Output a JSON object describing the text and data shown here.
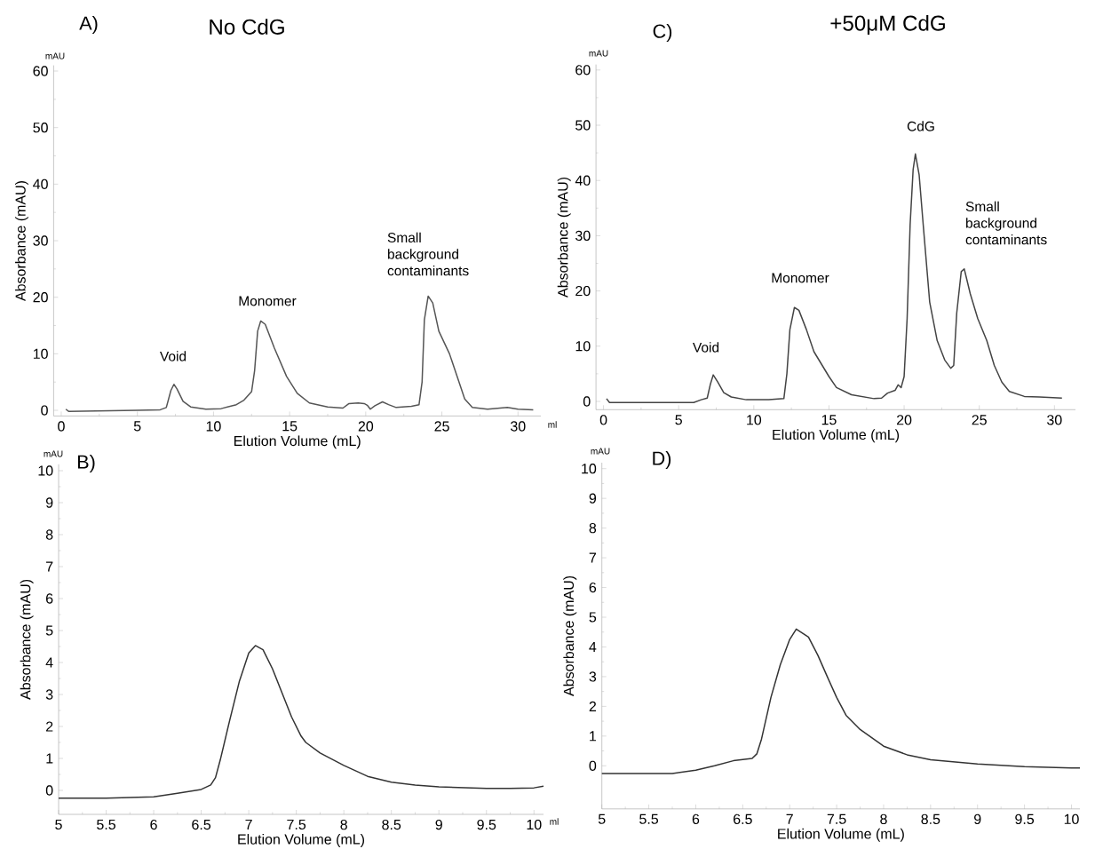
{
  "chart_data": [
    {
      "type": "line",
      "title": "No CdG",
      "xlabel": "Elution Volume (mL)",
      "ylabel": "Absorbance (mAU)",
      "xlim": [
        -0.5,
        31.5
      ],
      "ylim": [
        -1,
        61
      ],
      "xticks": [
        0,
        5,
        10,
        15,
        20,
        25,
        30
      ],
      "yticks": [
        0,
        10,
        20,
        30,
        40,
        50,
        60
      ],
      "series": [
        {
          "color": "#555555",
          "x": [
            0.3,
            0.5,
            5,
            6.5,
            6.9,
            7.2,
            7.4,
            7.6,
            8,
            8.5,
            9.5,
            10.5,
            11.5,
            12,
            12.5,
            12.7,
            12.9,
            13.1,
            13.4,
            14,
            14.8,
            15.5,
            16.3,
            17.5,
            18.5,
            18.9,
            19.5,
            19.9,
            20.1,
            20.3,
            20.6,
            21.1,
            21.5,
            22,
            23,
            23.5,
            23.7,
            23.85,
            24.1,
            24.4,
            24.8,
            25.5,
            26,
            26.5,
            27,
            28,
            29.3,
            30,
            31
          ],
          "values": [
            0.2,
            -0.2,
            0,
            0.1,
            0.5,
            3.5,
            4.6,
            3.8,
            1.6,
            0.6,
            0.2,
            0.3,
            1.0,
            1.8,
            3.3,
            7,
            14,
            15.8,
            15.2,
            11,
            6,
            3,
            1.3,
            0.6,
            0.4,
            1.2,
            1.3,
            1.2,
            0.9,
            0.2,
            0.8,
            1.5,
            1.0,
            0.5,
            0.7,
            1.0,
            5,
            16,
            20.2,
            19,
            14,
            10,
            6,
            2,
            0.5,
            0.2,
            0.5,
            0.2,
            0.1
          ]
        }
      ],
      "annotations": [
        "A)",
        "mAU",
        "ml",
        "Void",
        "Monomer",
        "Small background contaminants"
      ]
    },
    {
      "type": "line",
      "title": "+50μM CdG",
      "xlabel": "Elution Volume (mL)",
      "ylabel": "Absorbance (mAU)",
      "xlim": [
        -0.5,
        31.4
      ],
      "ylim": [
        -1.5,
        61
      ],
      "xticks": [
        0,
        5,
        10,
        15,
        20,
        25,
        30
      ],
      "yticks": [
        0,
        10,
        20,
        30,
        40,
        50,
        60
      ],
      "series": [
        {
          "color": "#444444",
          "x": [
            0.2,
            0.4,
            6,
            6.5,
            6.9,
            7.1,
            7.3,
            7.6,
            8,
            8.5,
            9.5,
            11,
            12,
            12.2,
            12.4,
            12.7,
            13,
            13.5,
            14,
            15,
            15.5,
            16.5,
            18,
            18.5,
            18.9,
            19.4,
            19.6,
            19.8,
            20,
            20.2,
            20.4,
            20.6,
            20.75,
            21,
            21.3,
            21.7,
            22.2,
            22.7,
            23.1,
            23.3,
            23.5,
            23.8,
            24,
            24.4,
            24.9,
            25.5,
            26,
            26.5,
            27,
            28,
            29,
            30.5
          ],
          "values": [
            0.5,
            -0.2,
            -0.2,
            0.3,
            0.6,
            3,
            4.8,
            3.5,
            1.6,
            0.8,
            0.3,
            0.3,
            0.5,
            5,
            13,
            17,
            16.5,
            13,
            9,
            4.5,
            2.5,
            1.2,
            0.5,
            0.6,
            1.5,
            2,
            3,
            2.5,
            4.5,
            15,
            32,
            42,
            44.8,
            41,
            31,
            18,
            11,
            7.5,
            6,
            6.5,
            16,
            23.5,
            24,
            19.5,
            15,
            11,
            6.5,
            3.5,
            1.8,
            0.9,
            0.8,
            0.6
          ]
        }
      ],
      "annotations": [
        "C)",
        "mAU",
        "Void",
        "Monomer",
        "CdG",
        "Small background contaminants"
      ]
    },
    {
      "type": "line",
      "xlabel": "Elution Volume (mL)",
      "ylabel": "Absorbance (mAU)",
      "xlim": [
        5,
        10.1
      ],
      "ylim": [
        -0.75,
        10.2
      ],
      "xticks": [
        5,
        5.5,
        6,
        6.5,
        7,
        7.5,
        8,
        8.5,
        9,
        9.5,
        10
      ],
      "yticks": [
        0,
        1,
        2,
        3,
        4,
        5,
        6,
        7,
        8,
        9,
        10
      ],
      "series": [
        {
          "color": "#333333",
          "x": [
            5,
            5.5,
            6,
            6.25,
            6.5,
            6.6,
            6.65,
            6.7,
            6.8,
            6.9,
            7.0,
            7.07,
            7.15,
            7.25,
            7.35,
            7.45,
            7.55,
            7.6,
            7.75,
            8,
            8.25,
            8.5,
            8.75,
            9,
            9.5,
            9.75,
            10,
            10.1
          ],
          "values": [
            -0.24,
            -0.24,
            -0.2,
            -0.09,
            0.03,
            0.17,
            0.4,
            0.95,
            2.2,
            3.4,
            4.3,
            4.53,
            4.4,
            3.8,
            3.05,
            2.3,
            1.7,
            1.5,
            1.17,
            0.78,
            0.44,
            0.26,
            0.17,
            0.11,
            0.06,
            0.06,
            0.08,
            0.13
          ]
        }
      ],
      "annotations": [
        "B)",
        "mAU",
        "ml"
      ]
    },
    {
      "type": "line",
      "xlabel": "Elution Volume (mL)",
      "ylabel": "Absorbance (mAU)",
      "xlim": [
        5,
        10.09
      ],
      "ylim": [
        -1.45,
        10.2
      ],
      "xticks": [
        5,
        5.5,
        6,
        6.5,
        7,
        7.5,
        8,
        8.5,
        9,
        9.5,
        10
      ],
      "yticks": [
        0,
        1,
        2,
        3,
        4,
        5,
        6,
        7,
        8,
        9,
        10
      ],
      "series": [
        {
          "color": "#333333",
          "x": [
            5,
            5.75,
            6,
            6.2,
            6.4,
            6.6,
            6.65,
            6.7,
            6.8,
            6.9,
            7,
            7.07,
            7.2,
            7.3,
            7.4,
            7.5,
            7.6,
            7.75,
            8,
            8.25,
            8.5,
            9,
            9.5,
            10,
            10.09
          ],
          "values": [
            -0.26,
            -0.26,
            -0.15,
            0,
            0.17,
            0.25,
            0.4,
            0.9,
            2.3,
            3.4,
            4.25,
            4.6,
            4.33,
            3.72,
            3.0,
            2.3,
            1.7,
            1.22,
            0.66,
            0.37,
            0.2,
            0.06,
            -0.03,
            -0.07,
            -0.07
          ]
        }
      ],
      "annotations": [
        "D)",
        "mAU"
      ]
    }
  ]
}
